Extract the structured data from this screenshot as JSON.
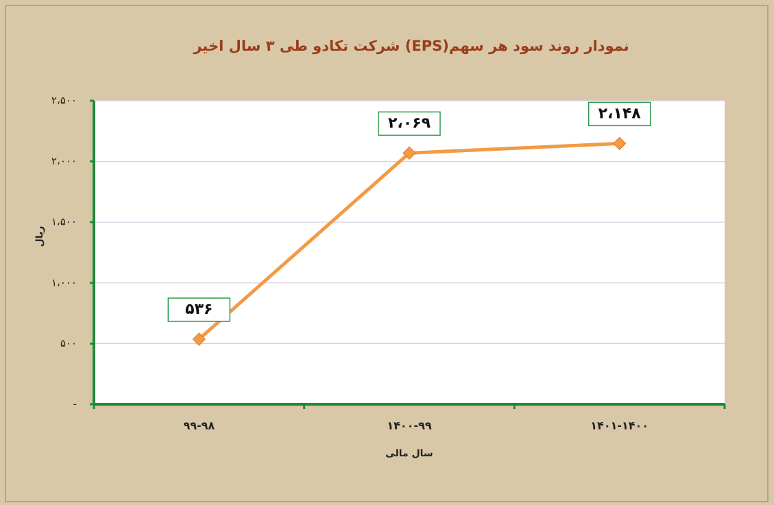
{
  "chart_data": {
    "type": "line",
    "title": "نمودار روند سود هر سهم(EPS) شرکت تکادو طی ۳ سال اخیر",
    "x_label": "سال مالی",
    "y_label": "ریال",
    "categories": [
      "۹۹-۹۸",
      "۱۴۰۰-۹۹",
      "۱۴۰۱-۱۴۰۰"
    ],
    "series": [
      {
        "name": "EPS",
        "color": "#f39a45",
        "values": [
          536,
          2069,
          2148
        ],
        "value_labels": [
          "۵۳۶",
          "۲،۰۶۹",
          "۲،۱۴۸"
        ]
      }
    ],
    "ylim": [
      0,
      2500
    ],
    "yticks": [
      {
        "value": 0,
        "label": "-"
      },
      {
        "value": 500,
        "label": "۵۰۰"
      },
      {
        "value": 1000,
        "label": "۱،۰۰۰"
      },
      {
        "value": 1500,
        "label": "۱،۵۰۰"
      },
      {
        "value": 2000,
        "label": "۲،۰۰۰"
      },
      {
        "value": 2500,
        "label": "۲،۵۰۰"
      }
    ],
    "grid": true
  }
}
